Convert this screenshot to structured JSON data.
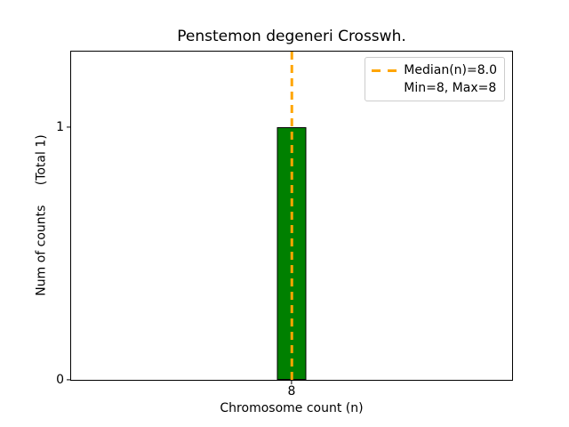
{
  "chart_data": {
    "type": "bar",
    "title": "Penstemon degeneri Crosswh.",
    "xlabel": "Chromosome count (n)",
    "ylabel": "Num of counts     (Total 1)",
    "categories": [
      8
    ],
    "values": [
      1
    ],
    "total_counts": 1,
    "xticks": [
      8
    ],
    "yticks": [
      0,
      1
    ],
    "ylim": [
      0,
      1.3
    ],
    "grid": false,
    "bar_color": "#008000",
    "bar_edge_color": "#000000",
    "median_line": {
      "x": 8,
      "color": "#ffa500",
      "style": "dashed"
    },
    "stats": {
      "median": 8.0,
      "min": 8,
      "max": 8
    },
    "legend": {
      "position": "upper right",
      "entries": [
        {
          "handle": "orange-dashed-line",
          "label": "Median(n)=8.0"
        },
        {
          "handle": "none",
          "label": "Min=8, Max=8"
        }
      ]
    }
  }
}
